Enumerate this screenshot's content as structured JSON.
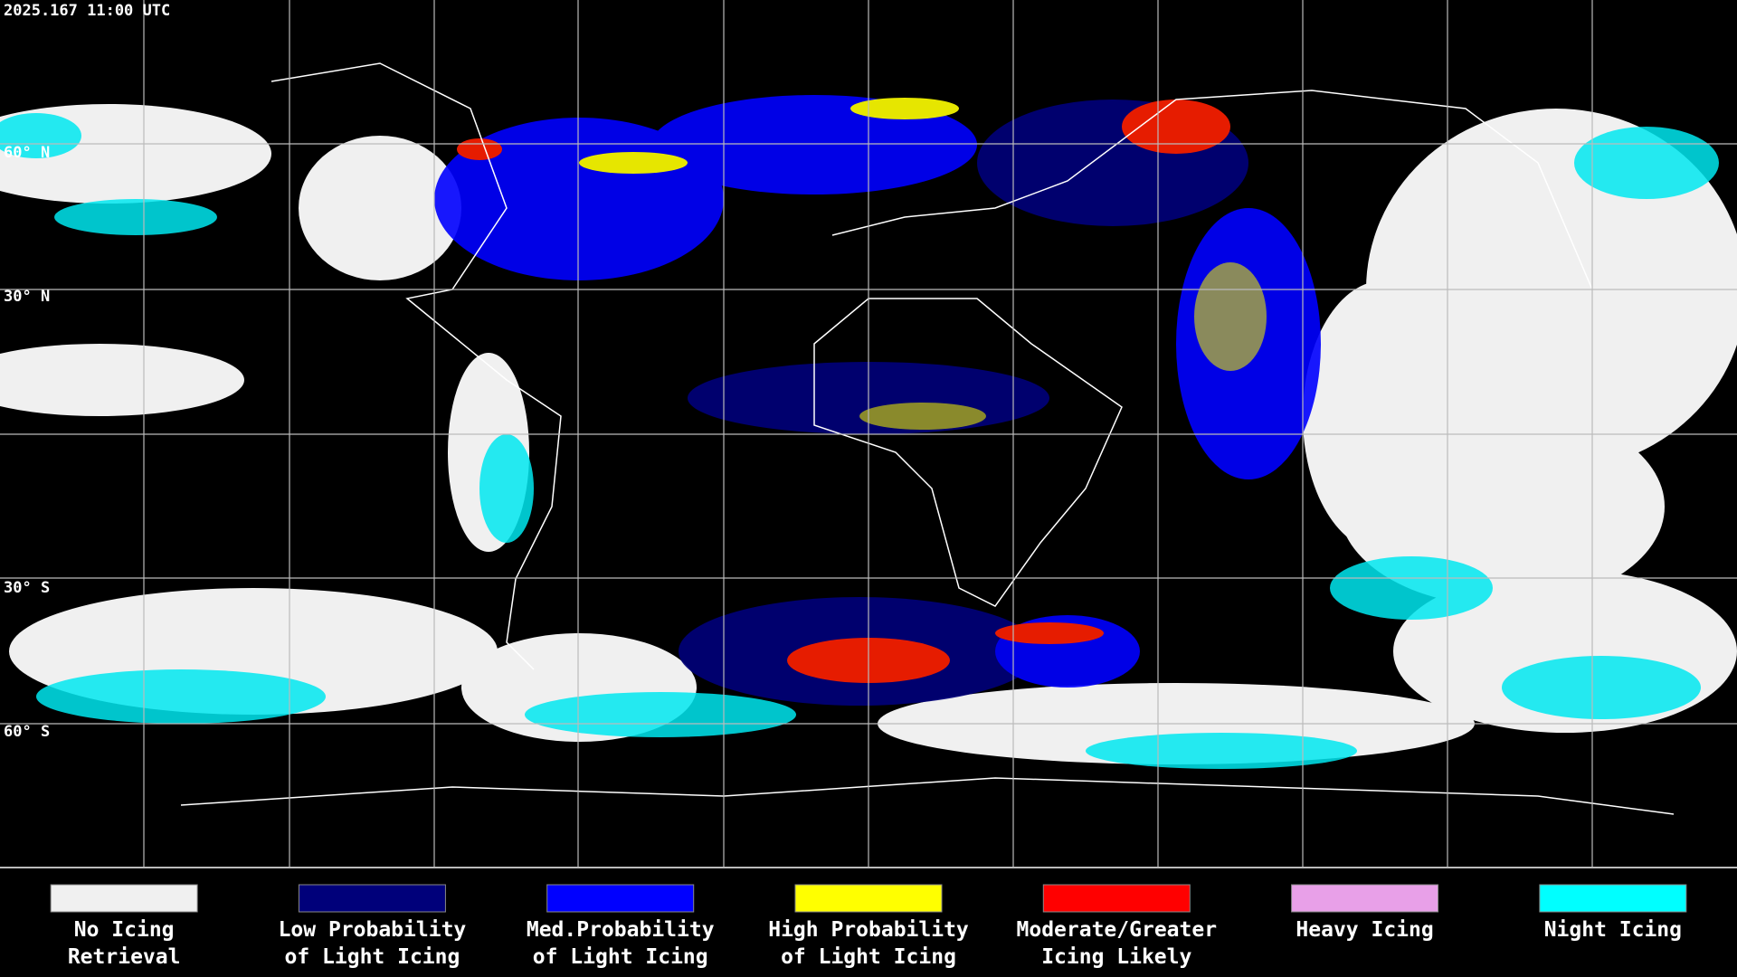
{
  "header": {
    "timestamp": "2025.167 11:00 UTC"
  },
  "map": {
    "lat_labels": [
      "60° N",
      "30° N",
      "30° S",
      "60° S"
    ]
  },
  "legend": [
    {
      "lines": [
        "No Icing",
        "Retrieval"
      ],
      "color": "#f0f0f0"
    },
    {
      "lines": [
        "Low Probability",
        "of Light Icing"
      ],
      "color": "#00007a"
    },
    {
      "lines": [
        "Med.Probability",
        "of Light Icing"
      ],
      "color": "#0000ff"
    },
    {
      "lines": [
        "High Probability",
        "of Light Icing"
      ],
      "color": "#ffff00"
    },
    {
      "lines": [
        "Moderate/Greater",
        "Icing Likely"
      ],
      "color": "#ff0000"
    },
    {
      "lines": [
        "Heavy Icing"
      ],
      "color": "#e8a0e8"
    },
    {
      "lines": [
        "Night Icing"
      ],
      "color": "#00ffff"
    }
  ]
}
